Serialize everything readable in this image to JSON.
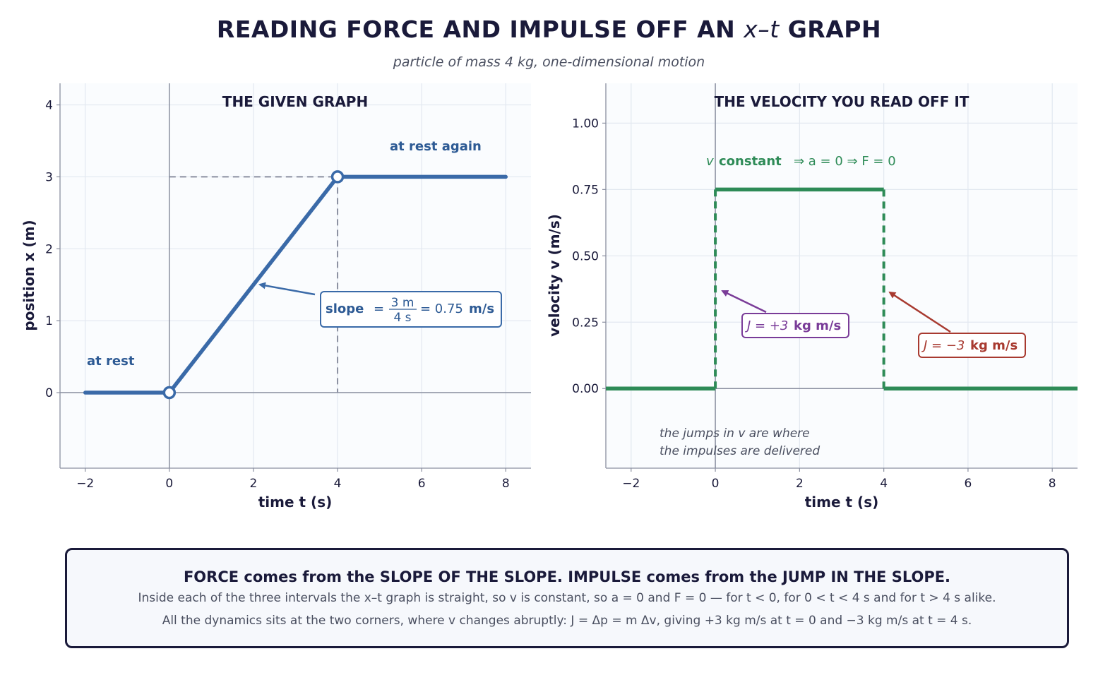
{
  "page": {
    "title_left": "READING FORCE AND IMPULSE OFF AN ",
    "title_mid": "x–t",
    "title_right": " GRAPH",
    "subtitle": "particle of mass 4 kg, one-dimensional motion"
  },
  "colors": {
    "position_line": "#3a6aa8",
    "velocity_line": "#2e8b57",
    "positive_impulse": "#7a3c98",
    "negative_impulse": "#a83a30",
    "axis": "#8a8fa0",
    "grid": "#e2e8f0",
    "plot_bg": "#fafcfe"
  },
  "chart_data": [
    {
      "type": "line",
      "title": "THE GIVEN GRAPH",
      "xlabel": "time  t  (s)",
      "ylabel": "position  x  (m)",
      "xlim": [
        -2.6,
        8.6
      ],
      "ylim": [
        -1.05,
        4.3
      ],
      "xticks": [
        -2,
        0,
        2,
        4,
        6,
        8
      ],
      "xtick_labels": [
        "−2",
        "0",
        "2",
        "4",
        "6",
        "8"
      ],
      "yticks": [
        0,
        1,
        2,
        3,
        4
      ],
      "ytick_labels": [
        "0",
        "1",
        "2",
        "3",
        "4"
      ],
      "grid": true,
      "series": [
        {
          "x": [
            -2,
            0,
            4,
            8
          ],
          "y": [
            0,
            0,
            3,
            3
          ]
        }
      ],
      "corner_markers": [
        {
          "x": 0,
          "y": 0
        },
        {
          "x": 4,
          "y": 3
        }
      ],
      "guides": {
        "x": 4,
        "y": 3
      },
      "annotations": {
        "at_rest": "at rest",
        "at_rest_again": "at rest again",
        "slope_label": "slope",
        "slope_eq": "=",
        "slope_num": "3 m",
        "slope_den": "4 s",
        "slope_value": "= 0.75",
        "slope_unit": "m/s"
      }
    },
    {
      "type": "line",
      "title": "THE VELOCITY YOU READ OFF IT",
      "xlabel": "time  t  (s)",
      "ylabel": "velocity  v  (m/s)",
      "xlim": [
        -2.6,
        8.6
      ],
      "ylim": [
        -0.3,
        1.15
      ],
      "xticks": [
        -2,
        0,
        2,
        4,
        6,
        8
      ],
      "xtick_labels": [
        "−2",
        "0",
        "2",
        "4",
        "6",
        "8"
      ],
      "yticks": [
        0,
        0.25,
        0.5,
        0.75,
        1.0
      ],
      "ytick_labels": [
        "0.00",
        "0.25",
        "0.50",
        "0.75",
        "1.00"
      ],
      "grid": true,
      "segments": [
        {
          "x": [
            -2.6,
            0
          ],
          "y": [
            0,
            0
          ]
        },
        {
          "x": [
            0,
            4
          ],
          "y": [
            0.75,
            0.75
          ]
        },
        {
          "x": [
            4,
            8.6
          ],
          "y": [
            0,
            0
          ]
        }
      ],
      "jumps": [
        {
          "x": 0,
          "from": 0,
          "to": 0.75
        },
        {
          "x": 4,
          "from": 0.75,
          "to": 0
        }
      ],
      "annotations": {
        "v_const_v": "v",
        "v_const_word": "constant",
        "v_const_rest": "⇒ a = 0 ⇒ F = 0",
        "impulse_pos_j": "J = +3",
        "impulse_pos_unit": "kg m/s",
        "impulse_neg_j": "J = −3",
        "impulse_neg_unit": "kg m/s",
        "note_line1": "the jumps in v are where",
        "note_line2": "the impulses are delivered"
      }
    }
  ],
  "summary": {
    "headline": "FORCE comes from the SLOPE OF THE SLOPE.  IMPULSE comes from the JUMP IN THE SLOPE.",
    "line1": "Inside each of the three intervals the x–t graph is straight, so v is constant, so a = 0 and F = 0 — for t < 0, for 0 < t < 4 s and for t > 4 s alike.",
    "line2": "All the dynamics sits at the two corners, where v changes abruptly:  J = Δp = m Δv, giving +3 kg m/s at t = 0 and −3 kg m/s at t = 4 s."
  }
}
